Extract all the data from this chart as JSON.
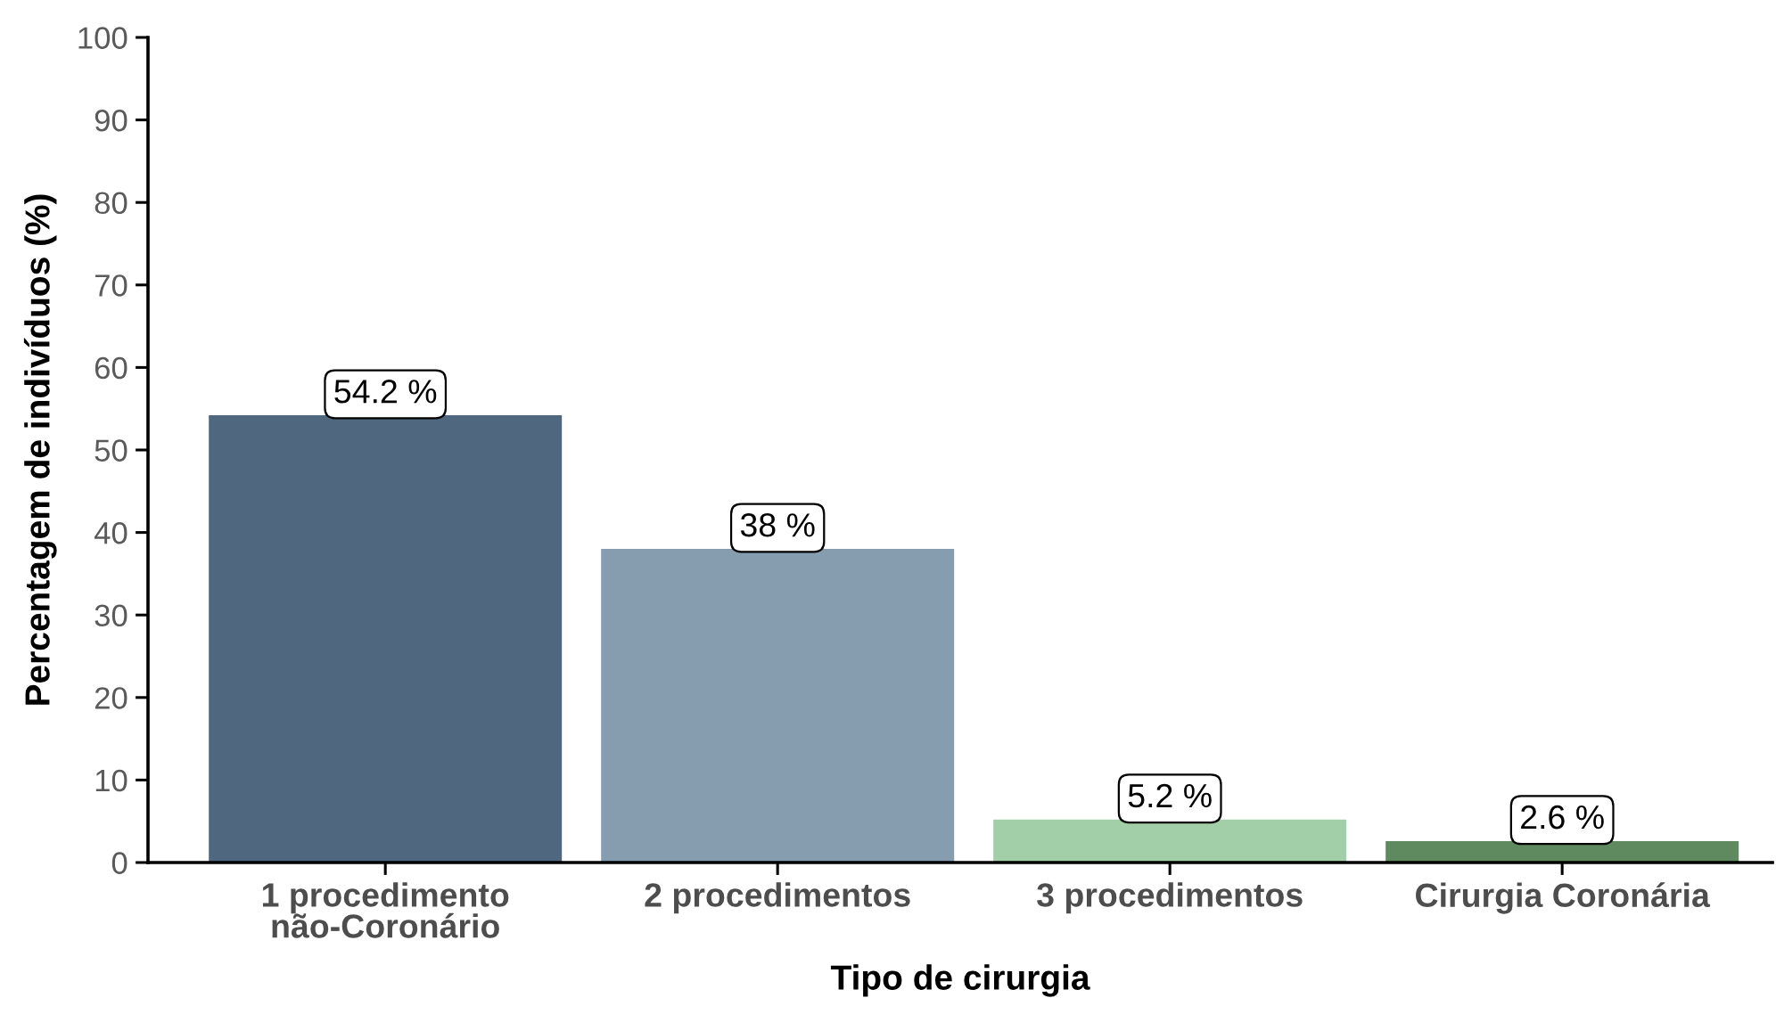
{
  "chart_data": {
    "type": "bar",
    "xlabel": "Tipo de cirurgia",
    "ylabel": "Percentagem de indivíduos (%)",
    "categories": [
      "1 procedimento\nnão-Coronário",
      "2 procedimentos",
      "3 procedimentos",
      "Cirurgia Coronária"
    ],
    "values": [
      54.2,
      38,
      5.2,
      2.6
    ],
    "colors": [
      "#4f6880",
      "#869db0",
      "#a3cfa8",
      "#5f8a5f"
    ],
    "value_labels": [
      "54.2 %",
      "38 %",
      "5.2 %",
      "2.6 %"
    ],
    "ylim": [
      0,
      100
    ],
    "yticks": [
      0,
      10,
      20,
      30,
      40,
      50,
      60,
      70,
      80,
      90,
      100
    ]
  }
}
